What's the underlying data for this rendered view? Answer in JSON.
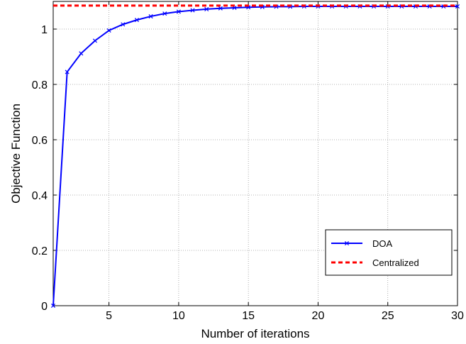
{
  "chart_data": {
    "type": "line",
    "title": "",
    "xlabel": "Number of iterations",
    "ylabel": "Objective Function",
    "xlim": [
      1,
      30
    ],
    "ylim": [
      0,
      1.1
    ],
    "xticks": [
      5,
      10,
      15,
      20,
      25,
      30
    ],
    "xtick_labels": [
      "5",
      "10",
      "15",
      "20",
      "25",
      "30"
    ],
    "yticks": [
      0,
      0.2,
      0.4,
      0.6,
      0.8,
      1
    ],
    "ytick_labels": [
      "0",
      "0.2",
      "0.4",
      "0.6",
      "0.8",
      "1"
    ],
    "grid": true,
    "legend_position": "bottom-right",
    "series": [
      {
        "name": "DOA",
        "color": "#0000ff",
        "line_style": "solid",
        "marker": "x",
        "x": [
          1,
          2,
          3,
          4,
          5,
          6,
          7,
          8,
          9,
          10,
          11,
          12,
          13,
          14,
          15,
          16,
          17,
          18,
          19,
          20,
          21,
          22,
          23,
          24,
          25,
          26,
          27,
          28,
          29,
          30
        ],
        "y": [
          0,
          0.845,
          0.912,
          0.958,
          0.995,
          1.017,
          1.033,
          1.046,
          1.056,
          1.063,
          1.068,
          1.072,
          1.075,
          1.077,
          1.079,
          1.08,
          1.081,
          1.081,
          1.082,
          1.082,
          1.082,
          1.082,
          1.082,
          1.082,
          1.082,
          1.082,
          1.082,
          1.082,
          1.082,
          1.082
        ]
      },
      {
        "name": "Centralized",
        "color": "#ff0000",
        "line_style": "dashed",
        "marker": "none",
        "x": [
          1,
          30
        ],
        "y": [
          1.085,
          1.085
        ]
      }
    ]
  }
}
